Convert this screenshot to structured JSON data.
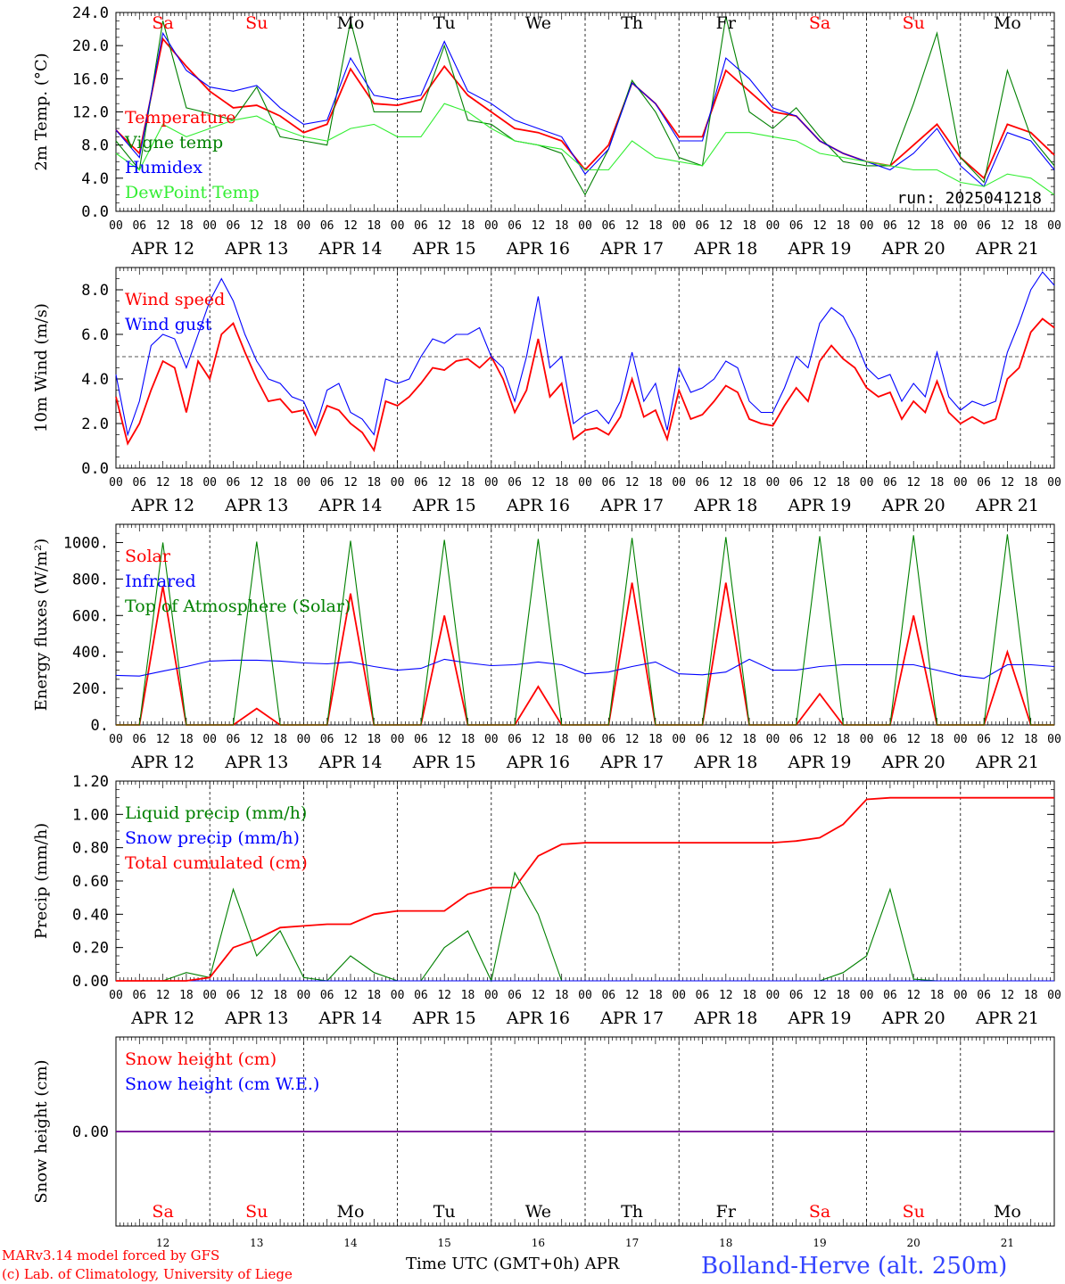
{
  "meta": {
    "run": "run: 2025041218",
    "footer_model": "MARv3.14 model forced by GFS",
    "footer_lab": "(c) Lab. of Climatology, University of Liege",
    "footer_xlabel": "Time UTC (GMT+0h) APR",
    "footer_station": "Bolland-Herve (alt. 250m)",
    "day_names": [
      "Sa",
      "Su",
      "Mo",
      "Tu",
      "We",
      "Th",
      "Fr",
      "Sa",
      "Su",
      "Mo"
    ],
    "weekend_flags": [
      true,
      true,
      false,
      false,
      false,
      false,
      false,
      true,
      true,
      false
    ],
    "date_labels": [
      "APR 12",
      "APR 13",
      "APR 14",
      "APR 15",
      "APR 16",
      "APR 17",
      "APR 18",
      "APR 19",
      "APR 20",
      "APR 21"
    ],
    "hour_ticks": [
      "00",
      "06",
      "12",
      "18"
    ],
    "end_tick": "00",
    "day_numbers": [
      "12",
      "13",
      "14",
      "15",
      "16",
      "17",
      "18",
      "19",
      "20",
      "21"
    ],
    "colors": {
      "red": "#ff0000",
      "green": "#008000",
      "blue": "#0000ff",
      "lightgreen": "#33ee33",
      "station": "#3344ff"
    }
  },
  "chart_data": [
    {
      "type": "line",
      "ylabel": "2m Temp. (°C)",
      "ylim": [
        0,
        24
      ],
      "yticks": [
        "0.0",
        "4.0",
        "8.0",
        "12.0",
        "16.0",
        "20.0",
        "24.0"
      ],
      "x_unit": "hours since APR 12 00 UTC",
      "x": [
        0,
        6,
        12,
        18,
        24,
        30,
        36,
        42,
        48,
        54,
        60,
        66,
        72,
        78,
        84,
        90,
        96,
        102,
        108,
        114,
        120,
        126,
        132,
        138,
        144,
        150,
        156,
        162,
        168,
        174,
        180,
        186,
        192,
        198,
        204,
        210,
        216,
        222,
        228,
        234,
        240
      ],
      "series": [
        {
          "name": "Temperature",
          "color": "#ff0000",
          "values": [
            9.8,
            7.0,
            20.8,
            17.5,
            14.5,
            12.5,
            12.8,
            11.5,
            9.5,
            10.5,
            17.2,
            13.0,
            12.8,
            13.5,
            17.5,
            14.0,
            12.0,
            10.0,
            9.5,
            8.5,
            5.0,
            8.0,
            15.5,
            13.0,
            9.0,
            9.0,
            17.0,
            14.5,
            12.0,
            11.5,
            8.5,
            7.0,
            6.0,
            5.5,
            8.0,
            10.5,
            6.5,
            4.0,
            10.5,
            9.5,
            6.8
          ]
        },
        {
          "name": "Vigne temp",
          "color": "#008000",
          "values": [
            8.5,
            5.0,
            23.0,
            12.5,
            11.8,
            11.0,
            15.0,
            9.0,
            8.5,
            8.0,
            23.0,
            12.0,
            12.0,
            12.0,
            20.0,
            11.0,
            10.5,
            8.5,
            8.0,
            7.0,
            2.0,
            7.5,
            15.8,
            12.0,
            6.5,
            5.5,
            23.5,
            12.0,
            10.0,
            12.5,
            9.0,
            6.0,
            5.5,
            5.5,
            13.0,
            21.5,
            6.5,
            3.5,
            17.0,
            9.0,
            5.5
          ]
        },
        {
          "name": "Humidex",
          "color": "#0000ff",
          "values": [
            9.8,
            6.5,
            21.5,
            17.0,
            15.0,
            14.5,
            15.2,
            12.5,
            10.5,
            11.0,
            18.5,
            14.0,
            13.5,
            14.0,
            20.5,
            14.5,
            13.0,
            11.0,
            10.0,
            9.0,
            4.5,
            7.5,
            15.5,
            13.0,
            8.5,
            8.5,
            18.5,
            16.0,
            12.5,
            11.5,
            8.5,
            7.0,
            6.0,
            5.0,
            7.0,
            10.0,
            5.5,
            3.0,
            9.5,
            8.5,
            5.0
          ]
        },
        {
          "name": "DewPoint Temp",
          "color": "#33ee33",
          "values": [
            7.0,
            5.0,
            10.5,
            9.0,
            10.0,
            11.0,
            11.5,
            10.0,
            9.0,
            8.5,
            10.0,
            10.5,
            9.0,
            9.0,
            13.0,
            12.0,
            10.0,
            8.5,
            8.0,
            7.5,
            5.0,
            5.0,
            8.5,
            6.5,
            6.0,
            5.5,
            9.5,
            9.5,
            9.0,
            8.5,
            7.0,
            6.5,
            6.0,
            5.5,
            5.0,
            5.0,
            3.5,
            3.0,
            4.5,
            4.0,
            2.0
          ]
        }
      ]
    },
    {
      "type": "line",
      "ylabel": "10m Wind (m/s)",
      "ylim": [
        0,
        9
      ],
      "yticks": [
        "0.0",
        "2.0",
        "4.0",
        "6.0",
        "8.0"
      ],
      "ref_line": 5.0,
      "x_unit": "hours since APR 12 00 UTC",
      "x": [
        0,
        3,
        6,
        9,
        12,
        15,
        18,
        21,
        24,
        27,
        30,
        33,
        36,
        39,
        42,
        45,
        48,
        51,
        54,
        57,
        60,
        63,
        66,
        69,
        72,
        75,
        78,
        81,
        84,
        87,
        90,
        93,
        96,
        99,
        102,
        105,
        108,
        111,
        114,
        117,
        120,
        123,
        126,
        129,
        132,
        135,
        138,
        141,
        144,
        147,
        150,
        153,
        156,
        159,
        162,
        165,
        168,
        171,
        174,
        177,
        180,
        183,
        186,
        189,
        192,
        195,
        198,
        201,
        204,
        207,
        210,
        213,
        216,
        219,
        222,
        225,
        228,
        231,
        234,
        237,
        240
      ],
      "series": [
        {
          "name": "Wind speed",
          "color": "#ff0000",
          "values": [
            3.2,
            1.1,
            2.0,
            3.5,
            4.8,
            4.5,
            2.5,
            4.8,
            4.0,
            6.0,
            6.5,
            5.2,
            4.0,
            3.0,
            3.1,
            2.5,
            2.6,
            1.5,
            2.8,
            2.6,
            2.0,
            1.6,
            0.8,
            3.0,
            2.8,
            3.2,
            3.8,
            4.5,
            4.4,
            4.8,
            4.9,
            4.5,
            5.0,
            4.0,
            2.5,
            3.5,
            5.8,
            3.2,
            3.8,
            1.3,
            1.7,
            1.8,
            1.5,
            2.3,
            4.0,
            2.3,
            2.6,
            1.3,
            3.5,
            2.2,
            2.4,
            3.0,
            3.7,
            3.4,
            2.2,
            2.0,
            1.9,
            2.8,
            3.6,
            3.0,
            4.8,
            5.5,
            4.9,
            4.5,
            3.6,
            3.2,
            3.4,
            2.2,
            3.0,
            2.5,
            3.9,
            2.5,
            2.0,
            2.3,
            2.0,
            2.2,
            4.0,
            4.5,
            6.1,
            6.7,
            6.3
          ]
        },
        {
          "name": "Wind gust",
          "color": "#0000ff",
          "values": [
            4.2,
            1.5,
            3.0,
            5.5,
            6.0,
            5.8,
            4.5,
            6.0,
            7.5,
            8.5,
            7.5,
            6.0,
            4.8,
            4.0,
            3.8,
            3.2,
            3.0,
            1.8,
            3.5,
            3.8,
            2.5,
            2.2,
            1.5,
            4.0,
            3.8,
            4.0,
            5.0,
            5.8,
            5.6,
            6.0,
            6.0,
            6.3,
            5.0,
            4.5,
            3.0,
            5.0,
            7.7,
            4.5,
            5.0,
            2.0,
            2.4,
            2.6,
            2.0,
            3.0,
            5.2,
            3.0,
            3.8,
            1.7,
            4.5,
            3.4,
            3.6,
            4.0,
            4.8,
            4.5,
            3.0,
            2.5,
            2.5,
            3.6,
            5.0,
            4.5,
            6.5,
            7.2,
            6.8,
            5.8,
            4.5,
            4.0,
            4.2,
            3.0,
            3.8,
            3.2,
            5.2,
            3.2,
            2.6,
            3.0,
            2.8,
            3.0,
            5.2,
            6.5,
            8.0,
            8.8,
            8.2
          ]
        }
      ]
    },
    {
      "type": "line",
      "ylabel": "Energy fluxes (W/m²)",
      "ylim": [
        0,
        1100
      ],
      "yticks": [
        "0.",
        "200.",
        "400.",
        "600.",
        "800.",
        "1000."
      ],
      "x_unit": "hours since APR 12 00 UTC",
      "x": [
        0,
        6,
        12,
        18,
        24,
        30,
        36,
        42,
        48,
        54,
        60,
        66,
        72,
        78,
        84,
        90,
        96,
        102,
        108,
        114,
        120,
        126,
        132,
        138,
        144,
        150,
        156,
        162,
        168,
        174,
        180,
        186,
        192,
        198,
        204,
        210,
        216,
        222,
        228,
        234,
        240
      ],
      "series": [
        {
          "name": "Solar",
          "color": "#ff0000",
          "values": [
            0,
            0,
            760,
            0,
            0,
            0,
            90,
            0,
            0,
            0,
            720,
            0,
            0,
            0,
            600,
            0,
            0,
            0,
            210,
            0,
            0,
            0,
            780,
            0,
            0,
            0,
            780,
            0,
            0,
            0,
            170,
            0,
            0,
            0,
            600,
            0,
            0,
            0,
            400,
            0,
            0
          ]
        },
        {
          "name": "Infrared",
          "color": "#0000ff",
          "values": [
            272,
            268,
            295,
            320,
            350,
            355,
            355,
            350,
            340,
            335,
            345,
            320,
            300,
            310,
            360,
            340,
            325,
            330,
            345,
            330,
            280,
            290,
            320,
            345,
            280,
            275,
            290,
            360,
            300,
            300,
            320,
            330,
            330,
            330,
            330,
            300,
            270,
            255,
            330,
            330,
            320
          ]
        },
        {
          "name": "Top of Atmosphere (Solar)",
          "color": "#008000",
          "values": [
            0,
            0,
            1000,
            0,
            0,
            0,
            1005,
            0,
            0,
            0,
            1010,
            0,
            0,
            0,
            1015,
            0,
            0,
            0,
            1020,
            0,
            0,
            0,
            1025,
            0,
            0,
            0,
            1030,
            0,
            0,
            0,
            1035,
            0,
            0,
            0,
            1040,
            0,
            0,
            0,
            1045,
            0,
            0
          ]
        }
      ]
    },
    {
      "type": "line",
      "ylabel": "Precip (mm/h)",
      "ylim": [
        0,
        1.2
      ],
      "yticks": [
        "0.00",
        "0.20",
        "0.40",
        "0.60",
        "0.80",
        "1.00",
        "1.20"
      ],
      "x_unit": "hours since APR 12 00 UTC",
      "x": [
        0,
        6,
        12,
        18,
        24,
        30,
        36,
        42,
        48,
        54,
        60,
        66,
        72,
        78,
        84,
        90,
        96,
        102,
        108,
        114,
        120,
        126,
        132,
        138,
        144,
        150,
        156,
        162,
        168,
        174,
        180,
        186,
        192,
        198,
        204,
        210,
        216,
        222,
        228,
        234,
        240
      ],
      "series": [
        {
          "name": "Liquid precip (mm/h)",
          "color": "#008000",
          "values": [
            0,
            0,
            0,
            0.05,
            0.02,
            0.55,
            0.15,
            0.3,
            0.02,
            0,
            0.15,
            0.05,
            0,
            0,
            0.2,
            0.3,
            0,
            0.65,
            0.4,
            0,
            0,
            0,
            0,
            0,
            0,
            0,
            0,
            0,
            0,
            0,
            0,
            0.05,
            0.15,
            0.55,
            0.01,
            0,
            0,
            0,
            0,
            0,
            0
          ]
        },
        {
          "name": "Snow precip (mm/h)",
          "color": "#0000ff",
          "values": [
            0,
            0,
            0,
            0,
            0,
            0,
            0,
            0,
            0,
            0,
            0,
            0,
            0,
            0,
            0,
            0,
            0,
            0,
            0,
            0,
            0,
            0,
            0,
            0,
            0,
            0,
            0,
            0,
            0,
            0,
            0,
            0,
            0,
            0,
            0,
            0,
            0,
            0,
            0,
            0,
            0
          ]
        },
        {
          "name": "Total cumulated (cm)",
          "color": "#ff0000",
          "values": [
            0,
            0,
            0,
            0,
            0.02,
            0.2,
            0.25,
            0.32,
            0.33,
            0.34,
            0.34,
            0.4,
            0.42,
            0.42,
            0.42,
            0.52,
            0.56,
            0.56,
            0.75,
            0.82,
            0.83,
            0.83,
            0.83,
            0.83,
            0.83,
            0.83,
            0.83,
            0.83,
            0.83,
            0.84,
            0.86,
            0.94,
            1.09,
            1.1,
            1.1,
            1.1,
            1.1,
            1.1,
            1.1,
            1.1,
            1.1
          ]
        }
      ]
    },
    {
      "type": "line",
      "ylabel": "Snow height (cm)",
      "yticks": [
        "0.00"
      ],
      "x_unit": "hours since APR 12 00 UTC",
      "x": [
        0,
        240
      ],
      "series": [
        {
          "name": "Snow height (cm)",
          "color": "#ff0000",
          "values": [
            0,
            0
          ]
        },
        {
          "name": "Snow height (cm W.E.)",
          "color": "#0000ff",
          "values": [
            0,
            0
          ]
        }
      ]
    }
  ]
}
